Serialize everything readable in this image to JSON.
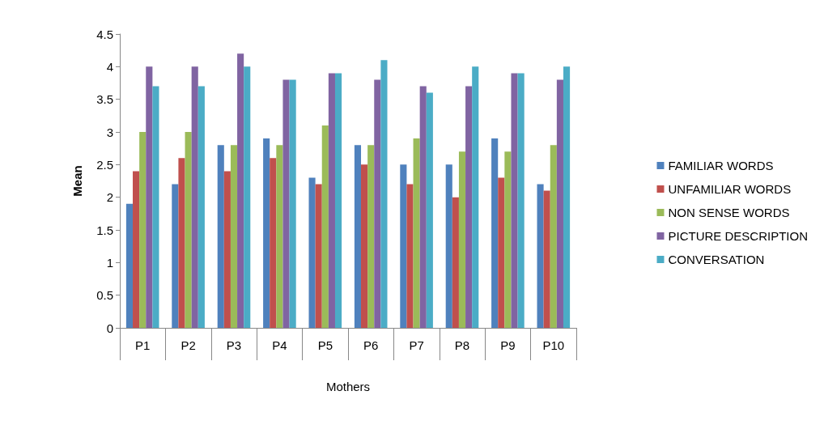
{
  "chart_data": {
    "type": "bar",
    "xlabel": "Mothers",
    "ylabel": "Mean",
    "categories": [
      "P1",
      "P2",
      "P3",
      "P4",
      "P5",
      "P6",
      "P7",
      "P8",
      "P9",
      "P10"
    ],
    "series": [
      {
        "name": "FAMILIAR WORDS",
        "color": "#4f81bd",
        "values": [
          1.9,
          2.2,
          2.8,
          2.9,
          2.3,
          2.8,
          2.5,
          2.5,
          2.9,
          2.2
        ]
      },
      {
        "name": "UNFAMILIAR WORDS",
        "color": "#c0504d",
        "values": [
          2.4,
          2.6,
          2.4,
          2.6,
          2.2,
          2.5,
          2.2,
          2.0,
          2.3,
          2.1
        ]
      },
      {
        "name": "NON SENSE WORDS",
        "color": "#9bbb59",
        "values": [
          3.0,
          3.0,
          2.8,
          2.8,
          3.1,
          2.8,
          2.9,
          2.7,
          2.7,
          2.8
        ]
      },
      {
        "name": "PICTURE DESCRIPTION",
        "color": "#8064a2",
        "values": [
          4.0,
          4.0,
          4.2,
          3.8,
          3.9,
          3.8,
          3.7,
          3.7,
          3.9,
          3.8
        ]
      },
      {
        "name": "CONVERSATION",
        "color": "#4bacc6",
        "values": [
          3.7,
          3.7,
          4.0,
          3.8,
          3.9,
          4.1,
          3.6,
          4.0,
          3.9,
          4.0
        ]
      }
    ],
    "ylim": [
      0,
      4.5
    ],
    "yticks": [
      0,
      0.5,
      1,
      1.5,
      2,
      2.5,
      3,
      3.5,
      4,
      4.5
    ],
    "grid": false,
    "legend": "right"
  }
}
